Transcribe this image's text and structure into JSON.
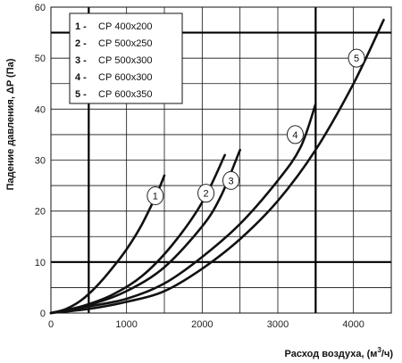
{
  "chart_data": {
    "type": "line",
    "xlabel": "Расход воздуха, (м³/ч)",
    "xlabel_main": "Расход воздуха, (м",
    "xlabel_sup": "3",
    "xlabel_tail": "/ч)",
    "ylabel": "Падение давления, ΔP (Па)",
    "xlim": [
      0,
      4500
    ],
    "ylim": [
      0,
      60
    ],
    "xticks": [
      "0",
      "1000",
      "2000",
      "3000",
      "4000"
    ],
    "yticks": [
      "0",
      "10",
      "20",
      "30",
      "40",
      "50",
      "60"
    ],
    "xtick_values": [
      0,
      1000,
      2000,
      3000,
      4000
    ],
    "ytick_values": [
      0,
      10,
      20,
      30,
      40,
      50,
      60
    ],
    "major_gridlines": {
      "x": [
        500,
        3500
      ],
      "y": [
        10,
        55
      ]
    },
    "grid": true,
    "legend_position": "top-left",
    "series": [
      {
        "name": "1 - СР 400х200",
        "number": "1",
        "label": "СР 400х200",
        "x": [
          0,
          200,
          400,
          600,
          800,
          1000,
          1200,
          1400,
          1500
        ],
        "y": [
          0,
          0.8,
          2.5,
          5.2,
          8.6,
          12.5,
          17.3,
          23.4,
          27
        ],
        "marker": {
          "x": 1380,
          "y": 23,
          "text": "1"
        }
      },
      {
        "name": "2 - СР 500х250",
        "number": "2",
        "label": "СР 500х250",
        "x": [
          0,
          400,
          800,
          1200,
          1600,
          2000,
          2300
        ],
        "y": [
          0,
          1.3,
          3.5,
          7.2,
          13.3,
          21.7,
          31
        ],
        "marker": {
          "x": 2050,
          "y": 23.5,
          "text": "2"
        }
      },
      {
        "name": "3 - СР 500х300",
        "number": "3",
        "label": "СР 500х300",
        "x": [
          0,
          500,
          1000,
          1500,
          2000,
          2250,
          2500
        ],
        "y": [
          0,
          1.6,
          4.3,
          9,
          17,
          23,
          32
        ],
        "marker": {
          "x": 2380,
          "y": 26,
          "text": "3"
        }
      },
      {
        "name": "4 - СР 600х300",
        "number": "4",
        "label": "СР 600х300",
        "x": [
          0,
          500,
          1000,
          1500,
          2000,
          2500,
          3000,
          3300,
          3500
        ],
        "y": [
          0,
          1.3,
          2.8,
          5.8,
          11,
          17.5,
          26,
          32.5,
          41
        ],
        "marker": {
          "x": 3230,
          "y": 35,
          "text": "4"
        }
      },
      {
        "name": "5 - СР 600х350",
        "number": "5",
        "label": "СР 600х350",
        "x": [
          0,
          500,
          1000,
          1500,
          2000,
          2500,
          3000,
          3500,
          4000,
          4400
        ],
        "y": [
          0,
          0.8,
          2.2,
          4.3,
          8.7,
          14.5,
          22,
          32,
          45,
          57.5
        ],
        "marker": {
          "x": 4040,
          "y": 50,
          "text": "5"
        }
      }
    ]
  }
}
